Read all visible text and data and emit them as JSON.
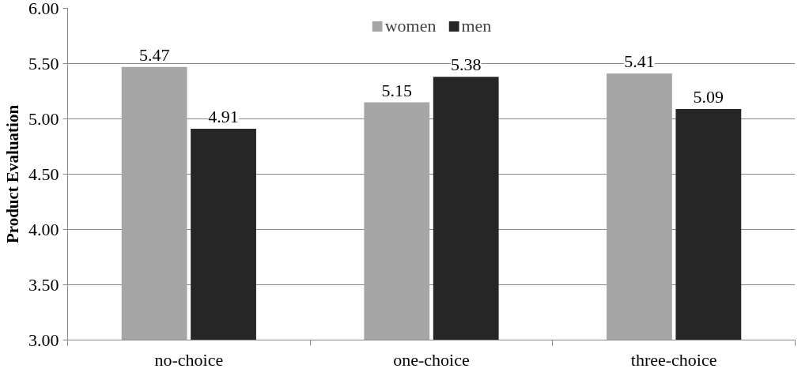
{
  "chart_data": {
    "type": "bar",
    "ylabel": "Product Evaluation",
    "categories": [
      "no-choice",
      "one-choice",
      "three-choice"
    ],
    "series": [
      {
        "name": "women",
        "color": "#a6a6a6",
        "values": [
          5.47,
          5.15,
          5.41
        ]
      },
      {
        "name": "men",
        "color": "#262626",
        "values": [
          4.91,
          5.38,
          5.09
        ]
      }
    ],
    "ylim": [
      3,
      6
    ],
    "yticks": [
      {
        "value": 3,
        "label": "3.00"
      },
      {
        "value": 3.5,
        "label": "3.50"
      },
      {
        "value": 4,
        "label": "4.00"
      },
      {
        "value": 4.5,
        "label": "4.50"
      },
      {
        "value": 5,
        "label": "5.00"
      },
      {
        "value": 5.5,
        "label": "5.50"
      },
      {
        "value": 6,
        "label": "6.00"
      }
    ],
    "grid": "y",
    "legend": "top",
    "data_labels": true
  }
}
